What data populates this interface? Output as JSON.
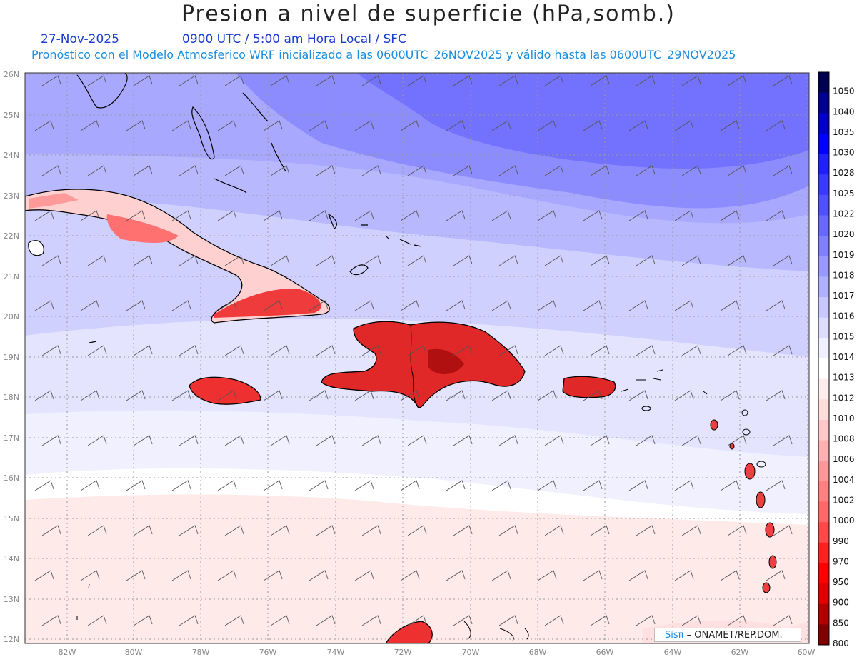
{
  "title": "Presion a nivel de superficie (hPa,somb.)",
  "date": "27-Nov-2025",
  "valid_time": "0900 UTC / 5:00 am Hora Local / SFC",
  "subtitle": "Pronóstico con el Modelo Atmosferico WRF inicializado a las 0600UTC_26NOV2025 y válido hasta las  0600UTC_29NOV2025",
  "lat_labels": [
    "26N",
    "25N",
    "24N",
    "23N",
    "22N",
    "21N",
    "20N",
    "19N",
    "18N",
    "17N",
    "16N",
    "15N",
    "14N",
    "13N",
    "12N"
  ],
  "lon_labels": [
    "82W",
    "80W",
    "78W",
    "76W",
    "74W",
    "72W",
    "70W",
    "68W",
    "66W",
    "64W",
    "62W",
    "60W"
  ],
  "colorbar": {
    "labels": [
      "1050",
      "1040",
      "1035",
      "1030",
      "1028",
      "1025",
      "1022",
      "1020",
      "1019",
      "1018",
      "1017",
      "1016",
      "1015",
      "1014",
      "1013",
      "1012",
      "1010",
      "1008",
      "1006",
      "1004",
      "1002",
      "1000",
      "990",
      "970",
      "950",
      "900",
      "850",
      "800"
    ],
    "colors": [
      "#000050",
      "#000090",
      "#0000c8",
      "#0000ff",
      "#2020ff",
      "#3a3aff",
      "#5050ff",
      "#6868ff",
      "#8080ff",
      "#9898ff",
      "#b0b0ff",
      "#c8c8ff",
      "#dcdcff",
      "#f0f0ff",
      "#ffffff",
      "#ffecec",
      "#ffdcdc",
      "#ffc8c8",
      "#ffb0b0",
      "#ff9898",
      "#ff8080",
      "#ff6868",
      "#ff4848",
      "#ff2020",
      "#ff0000",
      "#e00000",
      "#b00000",
      "#800000"
    ]
  },
  "logo": {
    "brand": "Sisπ",
    "text": "– ONAMET/REP.DOM."
  }
}
